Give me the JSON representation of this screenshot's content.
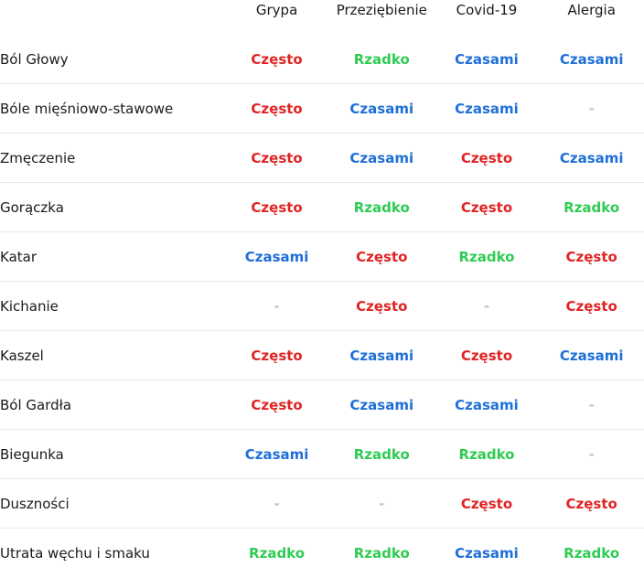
{
  "columns": [
    "Grypa",
    "Przeziębienie",
    "Covid-19",
    "Alergia"
  ],
  "rows": [
    {
      "label": "Ból Głowy",
      "values": [
        "Często",
        "Rzadko",
        "Czasami",
        "Czasami"
      ]
    },
    {
      "label": "Bóle mięśniowo-stawowe",
      "values": [
        "Często",
        "Czasami",
        "Czasami",
        "-"
      ]
    },
    {
      "label": "Zmęczenie",
      "values": [
        "Często",
        "Czasami",
        "Często",
        "Czasami"
      ]
    },
    {
      "label": "Gorączka",
      "values": [
        "Często",
        "Rzadko",
        "Często",
        "Rzadko"
      ]
    },
    {
      "label": "Katar",
      "values": [
        "Czasami",
        "Często",
        "Rzadko",
        "Często"
      ]
    },
    {
      "label": "Kichanie",
      "values": [
        "-",
        "Często",
        "-",
        "Często"
      ]
    },
    {
      "label": "Kaszel",
      "values": [
        "Często",
        "Czasami",
        "Często",
        "Czasami"
      ]
    },
    {
      "label": "Ból Gardła",
      "values": [
        "Często",
        "Czasami",
        "Czasami",
        "-"
      ]
    },
    {
      "label": "Biegunka",
      "values": [
        "Czasami",
        "Rzadko",
        "Rzadko",
        "-"
      ]
    },
    {
      "label": "Duszności",
      "values": [
        "-",
        "-",
        "Często",
        "Często"
      ]
    },
    {
      "label": "Utrata węchu i smaku",
      "values": [
        "Rzadko",
        "Rzadko",
        "Czasami",
        "Rzadko"
      ]
    }
  ],
  "value_colors": {
    "Często": "#e02424",
    "Rzadko": "#2ecc52",
    "Czasami": "#1f6fd8",
    "-": "#c4c4c4"
  }
}
